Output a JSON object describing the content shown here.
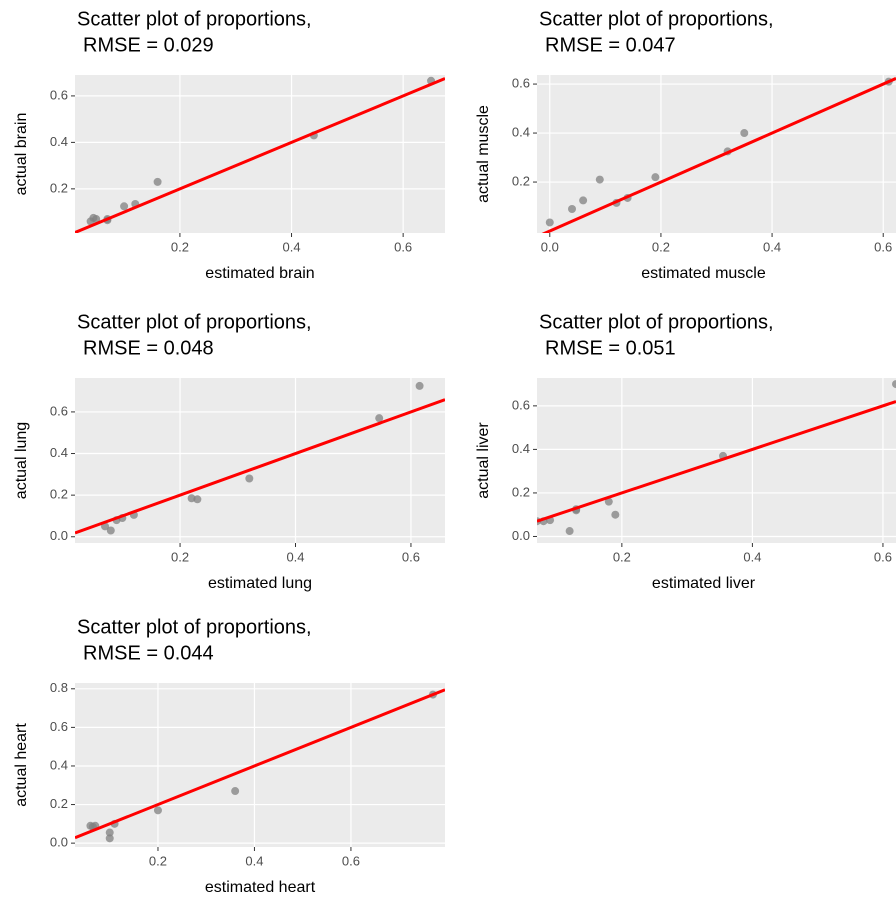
{
  "chart_data": [
    {
      "type": "scatter",
      "title": [
        "Scatter plot of proportions,",
        "RMSE = 0.029"
      ],
      "x_label": "estimated brain",
      "y_label": "actual brain",
      "x": [
        0.65,
        0.44,
        0.16,
        0.12,
        0.1,
        0.07,
        0.07,
        0.045,
        0.05,
        0.04
      ],
      "values": [
        0.665,
        0.43,
        0.23,
        0.135,
        0.125,
        0.07,
        0.065,
        0.075,
        0.07,
        0.06
      ],
      "xlim": [
        0.012,
        0.675
      ],
      "ylim": [
        0.01,
        0.69
      ],
      "xticks": [
        0.2,
        0.4,
        0.6
      ],
      "yticks": [
        0.2,
        0.4,
        0.6
      ],
      "color": "#808080",
      "reference_line": {
        "slope": 1,
        "intercept": 0,
        "color": "#ff0000"
      },
      "grid": true
    },
    {
      "type": "scatter",
      "title": [
        "Scatter plot of proportions,",
        "RMSE = 0.047"
      ],
      "x_label": "estimated muscle",
      "y_label": "actual muscle",
      "x": [
        0.61,
        0.35,
        0.32,
        0.19,
        0.14,
        0.12,
        0.09,
        0.06,
        0.04,
        0.0
      ],
      "values": [
        0.61,
        0.4,
        0.325,
        0.22,
        0.135,
        0.115,
        0.21,
        0.125,
        0.09,
        0.035
      ],
      "xlim": [
        -0.023,
        0.623
      ],
      "ylim": [
        -0.008,
        0.637
      ],
      "xticks": [
        {
          "value": 0,
          "label": "0.0"
        },
        0.2,
        0.4,
        0.6
      ],
      "yticks": [
        0.2,
        0.4,
        0.6
      ],
      "color": "#808080",
      "reference_line": {
        "slope": 1,
        "intercept": 0,
        "color": "#ff0000"
      },
      "grid": true
    },
    {
      "type": "scatter",
      "title": [
        "Scatter plot of proportions,",
        "RMSE = 0.048"
      ],
      "x_label": "estimated lung",
      "y_label": "actual lung",
      "x": [
        0.615,
        0.545,
        0.32,
        0.23,
        0.22,
        0.12,
        0.1,
        0.09,
        0.07,
        0.08
      ],
      "values": [
        0.725,
        0.57,
        0.28,
        0.18,
        0.185,
        0.105,
        0.09,
        0.08,
        0.05,
        0.03
      ],
      "xlim": [
        0.018,
        0.659
      ],
      "ylim": [
        -0.03,
        0.763
      ],
      "xticks": [
        0.2,
        0.4,
        0.6
      ],
      "yticks": [
        {
          "value": 0,
          "label": "0.0"
        },
        0.2,
        0.4,
        0.6
      ],
      "color": "#808080",
      "reference_line": {
        "slope": 1,
        "intercept": 0,
        "color": "#ff0000"
      },
      "grid": true
    },
    {
      "type": "scatter",
      "title": [
        "Scatter plot of proportions,",
        "RMSE = 0.051"
      ],
      "x_label": "estimated liver",
      "y_label": "actual liver",
      "x": [
        0.62,
        0.355,
        0.19,
        0.18,
        0.13,
        0.13,
        0.12,
        0.09,
        0.07,
        0.08
      ],
      "values": [
        0.7,
        0.37,
        0.1,
        0.16,
        0.12,
        0.125,
        0.025,
        0.075,
        0.07,
        0.07
      ],
      "xlim": [
        0.07,
        0.62
      ],
      "ylim": [
        -0.03,
        0.728
      ],
      "xticks": [
        0.2,
        0.4,
        0.6
      ],
      "yticks": [
        {
          "value": 0,
          "label": "0.0"
        },
        0.2,
        0.4,
        0.6
      ],
      "color": "#808080",
      "reference_line": {
        "slope": 1,
        "intercept": 0,
        "color": "#ff0000"
      },
      "grid": true
    },
    {
      "type": "scatter",
      "title": [
        "Scatter plot of proportions,",
        "RMSE = 0.044"
      ],
      "x_label": "estimated heart",
      "y_label": "actual heart",
      "x": [
        0.77,
        0.36,
        0.2,
        0.11,
        0.1,
        0.1,
        0.07,
        0.06,
        0.065
      ],
      "values": [
        0.77,
        0.27,
        0.17,
        0.1,
        0.055,
        0.025,
        0.09,
        0.09,
        0.085
      ],
      "xlim": [
        0.028,
        0.795
      ],
      "ylim": [
        -0.02,
        0.83
      ],
      "xticks": [
        0.2,
        0.4,
        0.6
      ],
      "yticks": [
        {
          "value": 0,
          "label": "0.0"
        },
        0.2,
        0.4,
        0.6,
        0.8
      ],
      "color": "#808080",
      "reference_line": {
        "slope": 1,
        "intercept": 0,
        "color": "#ff0000"
      },
      "grid": true
    }
  ]
}
